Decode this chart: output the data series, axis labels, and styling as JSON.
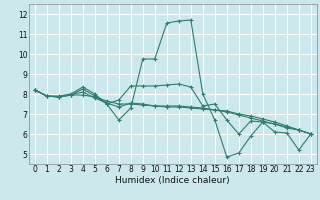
{
  "title": "",
  "xlabel": "Humidex (Indice chaleur)",
  "ylabel": "",
  "xlim": [
    -0.5,
    23.5
  ],
  "ylim": [
    4.5,
    12.5
  ],
  "yticks": [
    5,
    6,
    7,
    8,
    9,
    10,
    11,
    12
  ],
  "xticks": [
    0,
    1,
    2,
    3,
    4,
    5,
    6,
    7,
    8,
    9,
    10,
    11,
    12,
    13,
    14,
    15,
    16,
    17,
    18,
    19,
    20,
    21,
    22,
    23
  ],
  "bg_color": "#cce8ec",
  "grid_color": "#ffffff",
  "line_color": "#2e7d6e",
  "lines": [
    [
      8.2,
      7.9,
      7.9,
      8.0,
      8.35,
      8.0,
      7.5,
      6.7,
      7.3,
      9.75,
      9.75,
      11.55,
      11.65,
      11.7,
      8.0,
      6.7,
      4.85,
      5.05,
      5.9,
      6.6,
      6.1,
      6.05,
      5.2,
      6.0
    ],
    [
      8.2,
      7.9,
      7.85,
      7.95,
      8.25,
      7.9,
      7.5,
      7.7,
      8.4,
      8.4,
      8.4,
      8.45,
      8.5,
      8.35,
      7.4,
      7.5,
      6.7,
      6.0,
      6.65,
      6.6,
      6.5,
      6.3,
      6.2,
      6.0
    ],
    [
      8.2,
      7.9,
      7.85,
      7.95,
      8.1,
      7.8,
      7.55,
      7.35,
      7.55,
      7.5,
      7.4,
      7.35,
      7.35,
      7.3,
      7.25,
      7.2,
      7.15,
      7.0,
      6.9,
      6.75,
      6.6,
      6.4,
      6.2,
      6.0
    ],
    [
      8.2,
      7.9,
      7.85,
      7.95,
      7.95,
      7.85,
      7.65,
      7.5,
      7.5,
      7.45,
      7.4,
      7.4,
      7.4,
      7.35,
      7.3,
      7.2,
      7.1,
      6.95,
      6.8,
      6.65,
      6.5,
      6.35,
      6.2,
      6.0
    ]
  ]
}
